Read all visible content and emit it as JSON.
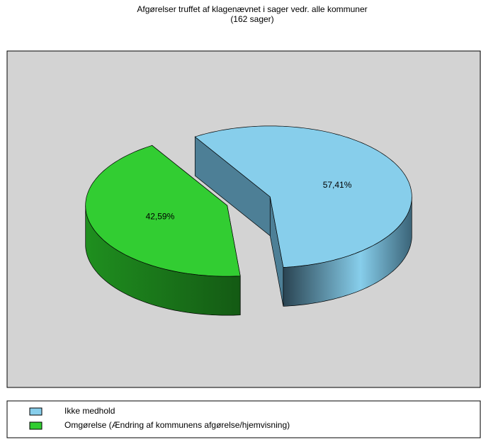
{
  "chart_data": {
    "type": "pie",
    "title": "Afgørelser truffet af klagenævnet i sager vedr. alle kommuner",
    "subtitle": "(162 sager)",
    "categories": [
      "Ikke medhold",
      "Omgørelse (Ændring af kommunens afgørelse/hjemvisning)"
    ],
    "values": [
      57.41,
      42.59
    ],
    "value_labels": [
      "57,41%",
      "42,59%"
    ],
    "colors": [
      "#87ceeb",
      "#32cd32"
    ],
    "legend": "bottom"
  }
}
